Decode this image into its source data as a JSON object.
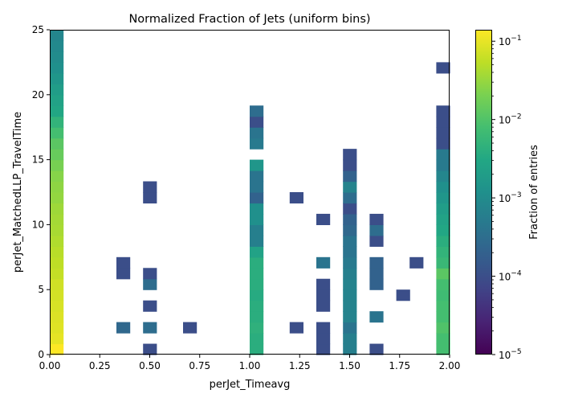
{
  "chart_data": {
    "type": "heatmap",
    "title": "Normalized Fraction of Jets (uniform bins)",
    "xlabel": "perJet_Timeavg",
    "ylabel": "perJet_MatchedLLP_TravelTime",
    "xlim": [
      0,
      2
    ],
    "ylim": [
      0,
      25
    ],
    "x_bins": 30,
    "y_bins": 30,
    "x_ticks": [
      "0.00",
      "0.25",
      "0.50",
      "0.75",
      "1.00",
      "1.25",
      "1.50",
      "1.75",
      "2.00"
    ],
    "x_tick_values": [
      0,
      0.25,
      0.5,
      0.75,
      1.0,
      1.25,
      1.5,
      1.75,
      2.0
    ],
    "y_ticks": [
      "0",
      "5",
      "10",
      "15",
      "20",
      "25"
    ],
    "y_tick_values": [
      0,
      5,
      10,
      15,
      20,
      25
    ],
    "colorbar": {
      "label": "Fraction of entries",
      "scale": "log",
      "vmin": 1e-05,
      "vmax": 0.14,
      "ticks": [
        {
          "value": 1e-05,
          "base": "10",
          "exp": "−5"
        },
        {
          "value": 0.0001,
          "base": "10",
          "exp": "−4"
        },
        {
          "value": 0.001,
          "base": "10",
          "exp": "−3"
        },
        {
          "value": 0.01,
          "base": "10",
          "exp": "−2"
        },
        {
          "value": 0.1,
          "base": "10",
          "exp": "−1"
        }
      ],
      "colormap": "viridis"
    },
    "cells_by_x_bin": {
      "0": [
        0.15,
        0.1,
        0.09,
        0.085,
        0.08,
        0.075,
        0.07,
        0.06,
        0.055,
        0.05,
        0.045,
        0.04,
        0.038,
        0.035,
        0.03,
        0.028,
        0.025,
        0.02,
        0.015,
        0.012,
        0.008,
        0.005,
        0.003,
        0.0025,
        0.002,
        0.0015,
        0.0012,
        0.001,
        0.0009,
        0.0008
      ],
      "5": {
        "2": 0.00025,
        "7": 0.0001,
        "8": 0.0001
      },
      "7": {
        "0": 0.0001,
        "2": 0.0003,
        "4": 0.0001,
        "6": 0.0003,
        "7": 0.0001,
        "14": 0.0001,
        "15": 0.0001
      },
      "10": {
        "2": 0.0001
      },
      "15": {
        "0": 0.004,
        "1": 0.004,
        "2": 0.0045,
        "3": 0.004,
        "4": 0.004,
        "5": 0.0035,
        "6": 0.004,
        "7": 0.004,
        "8": 0.004,
        "9": 0.0025,
        "10": 0.0006,
        "11": 0.0006,
        "12": 0.0012,
        "13": 0.0012,
        "14": 0.0002,
        "15": 0.0004,
        "16": 0.0004,
        "17": 0.0015,
        "19": 0.0005,
        "20": 0.0004,
        "21": 0.0001,
        "22": 0.0003
      },
      "18": {
        "2": 0.0001,
        "14": 0.0001
      },
      "20": {
        "0": 0.0001,
        "1": 0.0001,
        "2": 0.0001,
        "4": 0.0001,
        "5": 0.0001,
        "6": 0.0001,
        "8": 0.0004,
        "12": 0.0001
      },
      "22": {
        "0": 0.0006,
        "1": 0.0006,
        "2": 0.0004,
        "3": 0.0007,
        "4": 0.0007,
        "5": 0.0007,
        "6": 0.0007,
        "7": 0.0006,
        "8": 0.0005,
        "9": 0.0004,
        "10": 0.0004,
        "11": 0.00025,
        "12": 0.0002,
        "13": 0.0001,
        "14": 0.0003,
        "15": 0.0007,
        "16": 0.0002,
        "17": 0.0001,
        "18": 0.0001
      },
      "24": {
        "0": 0.0001,
        "3": 0.0004,
        "6": 0.0002,
        "7": 0.0002,
        "8": 0.0002,
        "10": 0.0001,
        "11": 0.0003,
        "12": 0.0001
      },
      "26": {
        "5": 0.0001
      },
      "27": {
        "8": 0.0001
      },
      "29": {
        "0": 0.008,
        "1": 0.008,
        "2": 0.01,
        "3": 0.008,
        "4": 0.008,
        "5": 0.007,
        "6": 0.008,
        "7": 0.012,
        "8": 0.006,
        "9": 0.005,
        "10": 0.004,
        "11": 0.003,
        "12": 0.0025,
        "13": 0.002,
        "14": 0.0015,
        "15": 0.0012,
        "16": 0.0008,
        "17": 0.0005,
        "18": 0.0005,
        "19": 0.0001,
        "20": 0.0001,
        "21": 0.0001,
        "22": 0.0001,
        "26": 0.0001
      }
    }
  }
}
